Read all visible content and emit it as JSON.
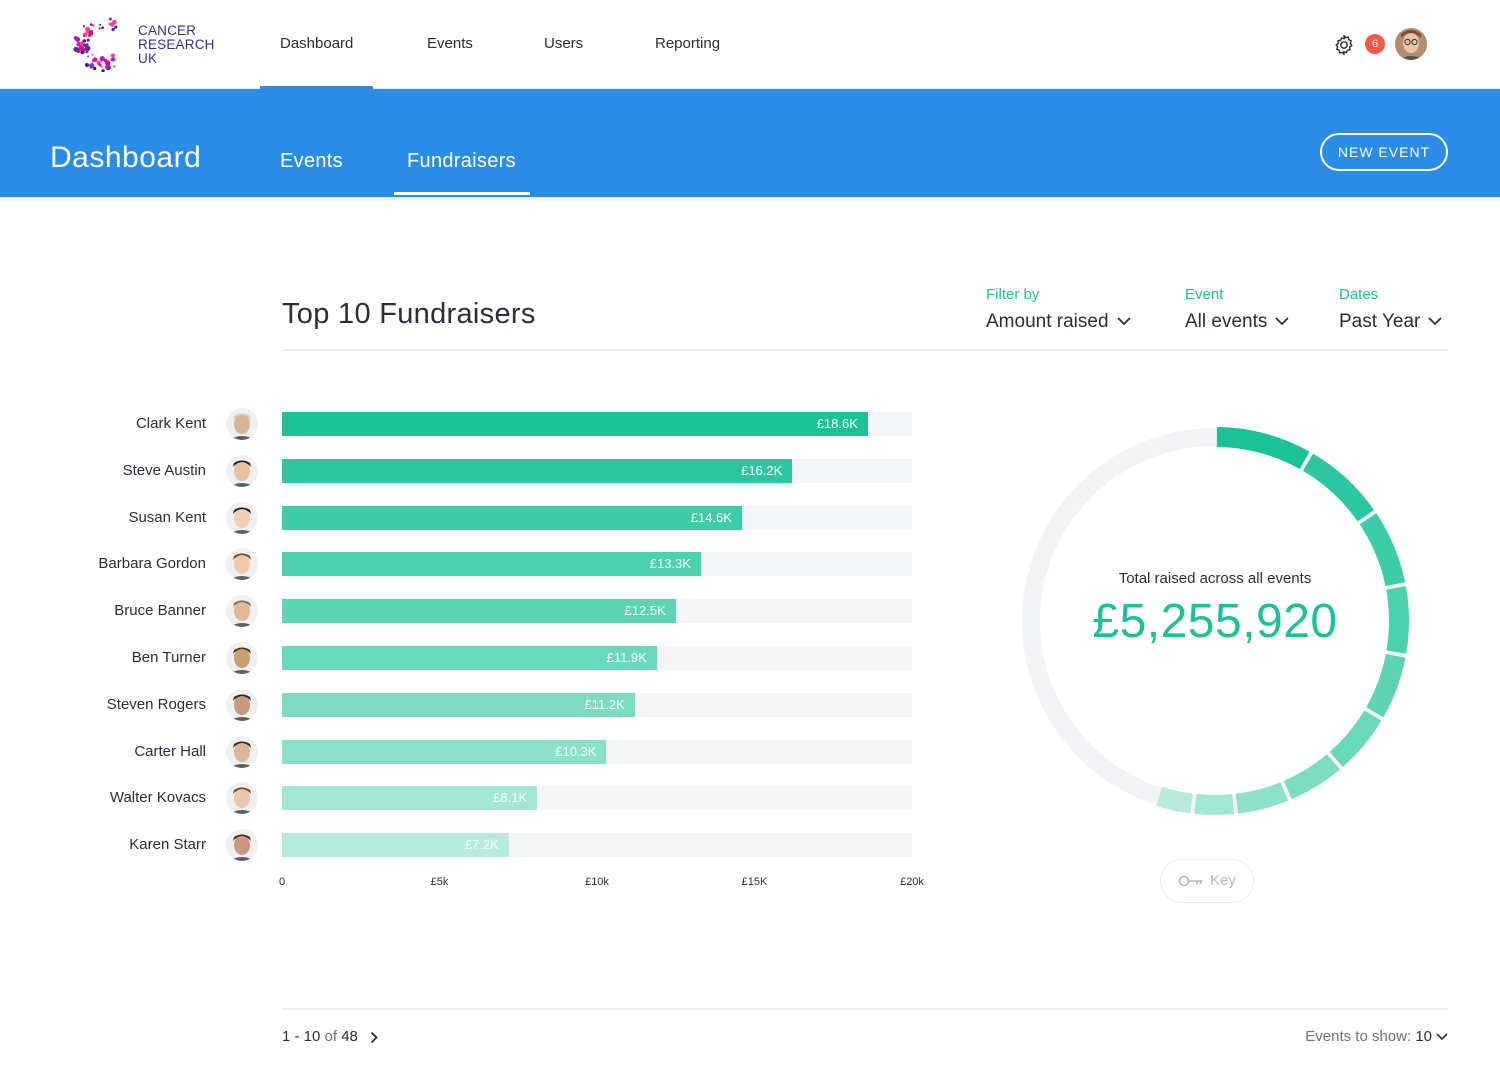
{
  "brand": {
    "line1": "CANCER",
    "line2": "RESEARCH",
    "line3": "UK"
  },
  "topnav": {
    "items": [
      "Dashboard",
      "Events",
      "Users",
      "Reporting"
    ],
    "active": "Dashboard",
    "notifications": "6"
  },
  "header": {
    "title": "Dashboard",
    "tabs": [
      "Events",
      "Fundraisers"
    ],
    "active_tab": "Fundraisers",
    "new_event": "NEW EVENT"
  },
  "section": {
    "title": "Top 10 Fundraisers"
  },
  "filters": [
    {
      "label": "Filter by",
      "value": "Amount raised"
    },
    {
      "label": "Event",
      "value": "All events"
    },
    {
      "label": "Dates",
      "value": "Past Year"
    }
  ],
  "chart_data": {
    "type": "bar",
    "orientation": "horizontal",
    "categories": [
      "Clark Kent",
      "Steve Austin",
      "Susan Kent",
      "Barbara Gordon",
      "Bruce Banner",
      "Ben Turner",
      "Steven Rogers",
      "Carter Hall",
      "Walter Kovacs",
      "Karen Starr"
    ],
    "values": [
      18.6,
      16.2,
      14.6,
      13.3,
      12.5,
      11.9,
      11.2,
      10.3,
      8.1,
      7.2
    ],
    "value_labels": [
      "£18.6K",
      "£16.2K",
      "£14.6K",
      "£13.3K",
      "£12.5K",
      "£11.9K",
      "£11.2K",
      "£10.3K",
      "£8.1K",
      "£7.2K"
    ],
    "xlim": [
      0,
      20
    ],
    "xticks": [
      "0",
      "£5k",
      "£10k",
      "£15K",
      "£20k"
    ],
    "colors": [
      "#1cc19a",
      "#2cc7a2",
      "#3dcca8",
      "#4dd0ae",
      "#5cd4b4",
      "#6ad8ba",
      "#7bdcc1",
      "#8de0c9",
      "#a3e6d4",
      "#b6ebdd"
    ]
  },
  "summary": {
    "caption": "Total raised across all events",
    "total": "£5,255,920",
    "key_label": "Key"
  },
  "footer": {
    "range": "1 - 10",
    "of_word": "of",
    "total": "48",
    "show_label": "Events to show:",
    "show_value": "10"
  },
  "colors": {
    "accent": "#1fbf98",
    "header_blue": "#2a8ce4",
    "badge": "#f05a4a"
  }
}
